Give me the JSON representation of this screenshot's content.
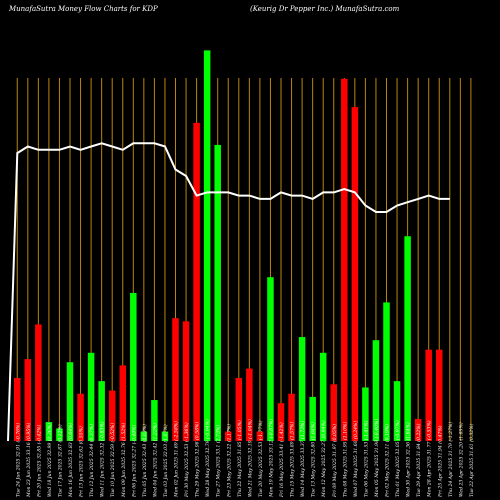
{
  "header": {
    "left": "MunafaSutra  Money Flow  Charts for KDP",
    "right": "(Keurig Dr Pepper Inc.) MunafaSutra.com"
  },
  "colors": {
    "background": "#000000",
    "up": "#00ff00",
    "down": "#ff0000",
    "grid": "#b8860b",
    "line": "#ffffff"
  },
  "chart_data": {
    "type": "bar",
    "title": "MunafaSutra  Money Flow  Charts for KDP",
    "subtitle": "(Keurig Dr Pepper Inc.) MunafaSutra.com",
    "categories": [
      "Tue 24 Jun 2025",
      "Mon 23 Jun 2025",
      "Fri 20 Jun 2025",
      "Wed 18 Jun 2025",
      "Tue 17 Jun 2025",
      "Mon 16 Jun 2025",
      "Fri 13 Jun 2025",
      "Thu 12 Jun 2025",
      "Wed 11 Jun 2025",
      "Tue 10 Jun 2025",
      "Mon 09 Jun 2025",
      "Fri 06 Jun 2025",
      "Thu 05 Jun 2025",
      "Wed 04 Jun 2025",
      "Tue 03 Jun 2025",
      "Mon 02 Jun 2025",
      "Fri 30 May 2025",
      "Thu 29 May 2025",
      "Wed 28 May 2025",
      "Tue 27 May 2025",
      "Fri 23 May 2025",
      "Thu 22 May 2025",
      "Wed 21 May 2025",
      "Tue 20 May 2025",
      "Mon 19 May 2025",
      "Fri 16 May 2025",
      "Thu 15 May 2025",
      "Wed 14 May 2025",
      "Tue 13 May 2025",
      "Mon 12 May 2025",
      "Fri 09 May 2025",
      "Thu 08 May 2025",
      "Wed 07 May 2025",
      "Tue 06 May 2025",
      "Mon 05 May 2025",
      "Fri 02 May 2025",
      "Thu 01 May 2025",
      "Wed 30 Apr 2025",
      "Tue 29 Apr 2025",
      "Mon 28 Apr 2025",
      "Fri 25 Apr 2025",
      "Thu 24 Apr 2025",
      "Wed 23 Apr 2025",
      "Tue 22 Apr 2025",
      "Mon 21 Apr 2025"
    ],
    "xticks": [
      "Tue 24 Jun 2025 32.91 (-0.76%)",
      "Mon 23 Jun 2025 33.16 (0.95%)",
      "Fri 20 Jun 2025 32.85 (-0.42%)",
      "Wed 18 Jun 2025 32.99 (0.36%)",
      "Tue 17 Jun 2025 32.87 (0.12%)",
      "Mon 16 Jun 2025 32.83 (0.64%)",
      "Fri 13 Jun 2025 32.62 (0.55%)",
      "Thu 12 Jun 2025 32.44 (0.37%)",
      "Wed 11 Jun 2025 32.32 (-0.83%)",
      "Tue 10 Jun 2025 32.59 (-0.52%)",
      "Mon 09 Jun 2025 32.76 (1.52%)",
      "Fri 06 Jun 2025 32.27 (-0.49%)",
      "Thu 05 Jun 2025 32.43 (0.03%)",
      "Wed 04 Jun 2025 32.42 (1.22%)",
      "Tue 03 Jun 2025 32.03 (1.07%)",
      "Mon 02 Jun 2025 31.69 (-2.58%)",
      "Fri 30 May 2025 32.53 (-1.36%)",
      "Thu 29 May 2025 32.98 (0.58%)",
      "Wed 28 May 2025 32.79 (-0.94%)",
      "Tue 27 May 2025 33.1 (2.73%)",
      "Fri 23 May 2025 32.22 (1.17%)",
      "Thu 22 May 2025 31.85 (-1.05%)",
      "Wed 21 May 2025 32.19 (-1.04%)",
      "Tue 20 May 2025 32.53 (-1.77%)",
      "Mon 19 May 2025 33.12 (-0.87%)",
      "Fri 16 May 2025 33.41 (-1.42%)",
      "Thu 15 May 2025 33.89 (1.57%)",
      "Wed 14 May 2025 33.37 (1.73%)",
      "Tue 13 May 2025 32.80 (1.64%)",
      "Mon 12 May 2025 32.27 (0.94%)",
      "Fri 09 May 2025 31.97 (0.05%)",
      "Thu 08 May 2025 31.95 (1.10%)",
      "Wed 07 May 2025 31.60 (0.24%)",
      "Tue 06 May 2025 31.53 (-1.41%)",
      "Mon 05 May 2025 31.98 (-0.40%)",
      "Fri 02 May 2025 32.11 (0.19%)",
      "Thu 01 May 2025 32.05 (-0.97%)",
      "Wed 30 Apr 2025 32.36 (1.64%)",
      "Tue 29 Apr 2025 31.84 (0.22%)",
      "Mon 28 Apr 2025 31.77 (-0.53%)",
      "Fri 25 Apr 2025 31.94 (0.47%)",
      "Thu 24 Apr 2025 31.79 (-1.27%)",
      "Wed 23 Apr 2025 32.20 (1.85%)",
      "Tue 22 Apr 2025 31.61 (0.32%)",
      "Mon 21 Apr 2025 31.51 (-2.08%)"
    ],
    "series": [
      {
        "name": "",
        "values": [
          20,
          26,
          37,
          6,
          4,
          25,
          15,
          28,
          19,
          16,
          24,
          47,
          3,
          13,
          3,
          39,
          38,
          101,
          124,
          94,
          3,
          20,
          23,
          3,
          52,
          12,
          15,
          33,
          14,
          28,
          18,
          115,
          106,
          17,
          32,
          44,
          19,
          65,
          7,
          29,
          29,
          0,
          0,
          0,
          0
        ],
        "direction": [
          "down",
          "down",
          "down",
          "up",
          "up",
          "up",
          "down",
          "up",
          "up",
          "down",
          "down",
          "up",
          "up",
          "up",
          "up",
          "down",
          "down",
          "down",
          "up",
          "up",
          "down",
          "down",
          "down",
          "down",
          "up",
          "down",
          "down",
          "up",
          "up",
          "up",
          "down",
          "down",
          "down",
          "up",
          "up",
          "up",
          "up",
          "up",
          "down",
          "down",
          "down",
          "down",
          "down",
          "down",
          "down"
        ]
      },
      {
        "name": "",
        "values": [
          85,
          87,
          86,
          86,
          86,
          87,
          86,
          87,
          88,
          87,
          86,
          88,
          88,
          88,
          87,
          80,
          78,
          72,
          73,
          73,
          73,
          72,
          72,
          71,
          71,
          73,
          72,
          72,
          71,
          73,
          73,
          74,
          73,
          69,
          67,
          67,
          69,
          70,
          71,
          72,
          71,
          71,
          0,
          0,
          0
        ]
      }
    ],
    "visible_bars": 44,
    "ylim": [
      0,
      140
    ],
    "grid": true,
    "legend": "none"
  }
}
